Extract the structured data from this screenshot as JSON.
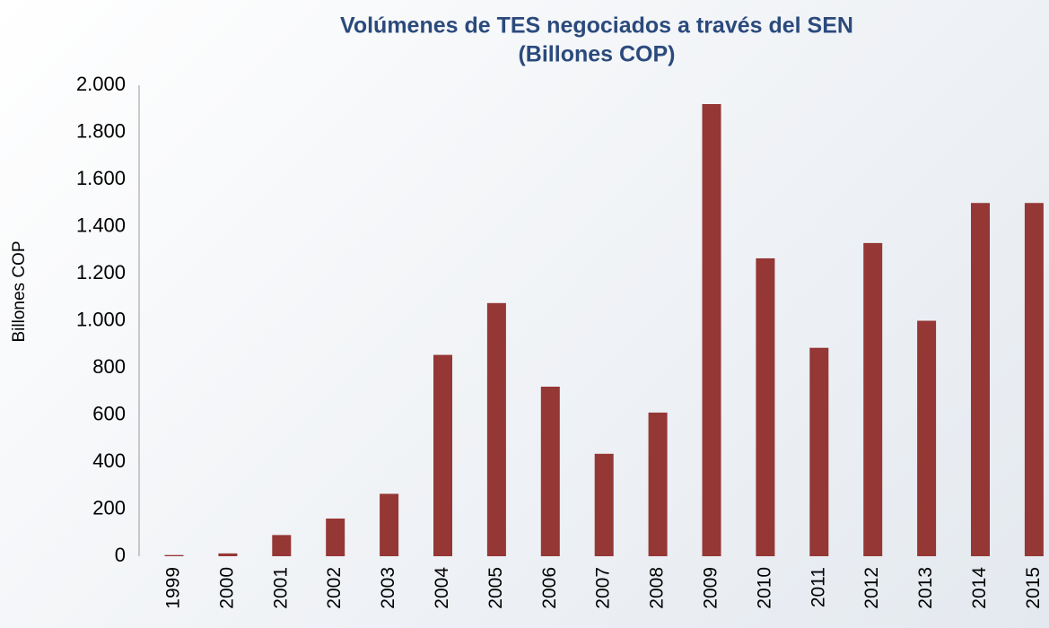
{
  "chart_data": {
    "type": "bar",
    "title": "Volúmenes de TES negociados a través del SEN",
    "subtitle": "(Billones COP)",
    "y_label": "Billones COP",
    "categories": [
      "1999",
      "2000",
      "2001",
      "2002",
      "2003",
      "2004",
      "2005",
      "2006",
      "2007",
      "2008",
      "2009",
      "2010",
      "2011",
      "2012",
      "2013",
      "2014",
      "2015"
    ],
    "values": [
      5,
      12,
      90,
      160,
      265,
      855,
      1075,
      720,
      435,
      610,
      1920,
      1265,
      885,
      1330,
      1000,
      1500,
      1500
    ],
    "color": "#953735",
    "ylim": [
      0,
      2000
    ],
    "yticks": [
      0,
      {
        "value": 200,
        "label": "200"
      },
      {
        "value": 400,
        "label": "400"
      },
      {
        "value": 600,
        "label": "600"
      },
      {
        "value": 800,
        "label": "800"
      },
      {
        "value": 1000,
        "label": "1.000"
      },
      {
        "value": 1200,
        "label": "1.200"
      },
      {
        "value": 1400,
        "label": "1.400"
      },
      {
        "value": 1600,
        "label": "1.600"
      },
      {
        "value": 1800,
        "label": "1.800"
      },
      {
        "value": 2000,
        "label": "2.000"
      }
    ],
    "grid": false
  }
}
